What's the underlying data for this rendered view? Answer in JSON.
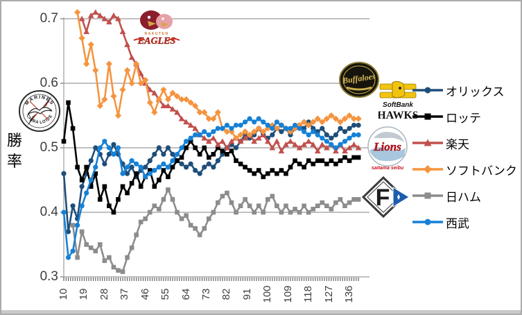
{
  "window": {
    "background": "#ffffff",
    "border_color": "#ababab"
  },
  "chart_data": {
    "type": "line",
    "title": "",
    "xlabel": "",
    "ylabel": "勝率",
    "ylim": [
      0.3,
      0.7
    ],
    "xlim": [
      10,
      143
    ],
    "grid": true,
    "legend_position": "right",
    "x_start": 10,
    "x_step": 2,
    "y_ticks": [
      {
        "value": 0.7,
        "label": "0.7"
      },
      {
        "value": 0.6,
        "label": "0.6"
      },
      {
        "value": 0.5,
        "label": "0.5"
      },
      {
        "value": 0.4,
        "label": "0.4"
      },
      {
        "value": 0.3,
        "label": "0.3"
      }
    ],
    "x_ticks": [
      {
        "value": 10,
        "label": "10"
      },
      {
        "value": 19,
        "label": "19"
      },
      {
        "value": 28,
        "label": "28"
      },
      {
        "value": 37,
        "label": "37"
      },
      {
        "value": 46,
        "label": "46"
      },
      {
        "value": 55,
        "label": "55"
      },
      {
        "value": 64,
        "label": "64"
      },
      {
        "value": 73,
        "label": "73"
      },
      {
        "value": 82,
        "label": "82"
      },
      {
        "value": 91,
        "label": "91"
      },
      {
        "value": 100,
        "label": "100"
      },
      {
        "value": 109,
        "label": "109"
      },
      {
        "value": 118,
        "label": "118"
      },
      {
        "value": 127,
        "label": "127"
      },
      {
        "value": 136,
        "label": "136"
      }
    ],
    "series": [
      {
        "id": "orix",
        "name": "オリックス",
        "color": "#1F4E79",
        "marker": "circle",
        "values": [
          0.46,
          0.37,
          0.41,
          0.39,
          0.44,
          0.46,
          0.48,
          0.5,
          0.49,
          0.475,
          0.49,
          0.505,
          0.49,
          0.475,
          0.46,
          0.47,
          0.455,
          0.465,
          0.47,
          0.48,
          0.49,
          0.5,
          0.49,
          0.5,
          0.49,
          0.48,
          0.475,
          0.47,
          0.475,
          0.465,
          0.46,
          0.47,
          0.475,
          0.47,
          0.48,
          0.49,
          0.5,
          0.505,
          0.5,
          0.51,
          0.52,
          0.515,
          0.52,
          0.53,
          0.52,
          0.515,
          0.52,
          0.53,
          0.525,
          0.53,
          0.52,
          0.53,
          0.535,
          0.53,
          0.54,
          0.53,
          0.525,
          0.53,
          0.52,
          0.515,
          0.52,
          0.53,
          0.525,
          0.53,
          0.535,
          0.535
        ]
      },
      {
        "id": "lotte",
        "name": "ロッテ",
        "color": "#000000",
        "marker": "square",
        "values": [
          0.51,
          0.57,
          0.53,
          0.47,
          0.45,
          0.47,
          0.44,
          0.46,
          0.42,
          0.44,
          0.41,
          0.4,
          0.42,
          0.44,
          0.43,
          0.445,
          0.46,
          0.44,
          0.455,
          0.465,
          0.44,
          0.45,
          0.465,
          0.455,
          0.47,
          0.48,
          0.485,
          0.5,
          0.51,
          0.5,
          0.49,
          0.5,
          0.485,
          0.49,
          0.5,
          0.495,
          0.49,
          0.495,
          0.48,
          0.475,
          0.47,
          0.465,
          0.46,
          0.465,
          0.455,
          0.46,
          0.465,
          0.46,
          0.465,
          0.46,
          0.47,
          0.48,
          0.475,
          0.47,
          0.48,
          0.475,
          0.48,
          0.48,
          0.475,
          0.48,
          0.475,
          0.48,
          0.485,
          0.48,
          0.485,
          0.485
        ]
      },
      {
        "id": "rakuten",
        "name": "楽天",
        "color": "#C0504D",
        "marker": "triangle",
        "values": [
          null,
          null,
          null,
          null,
          0.7,
          0.68,
          0.705,
          0.71,
          0.705,
          0.7,
          0.695,
          0.705,
          0.7,
          0.68,
          0.66,
          0.64,
          0.63,
          0.615,
          0.6,
          0.59,
          0.585,
          0.575,
          0.565,
          0.565,
          0.56,
          0.555,
          0.545,
          0.54,
          0.535,
          0.53,
          0.52,
          0.515,
          0.51,
          0.515,
          0.505,
          0.51,
          0.5,
          0.51,
          0.515,
          0.51,
          0.515,
          0.52,
          0.51,
          0.515,
          0.52,
          0.51,
          0.5,
          0.51,
          0.495,
          0.505,
          0.51,
          0.505,
          0.5,
          0.505,
          0.51,
          0.505,
          0.495,
          0.505,
          0.5,
          0.505,
          0.495,
          0.505,
          0.495,
          0.5,
          0.505,
          0.5
        ]
      },
      {
        "id": "softbank",
        "name": "ソフトバンク",
        "color": "#F5943F",
        "marker": "diamond",
        "values": [
          null,
          null,
          null,
          0.71,
          0.67,
          0.63,
          0.66,
          0.62,
          0.565,
          0.575,
          0.63,
          0.58,
          0.55,
          0.59,
          0.62,
          0.6,
          0.63,
          0.6,
          0.605,
          0.57,
          0.555,
          0.575,
          0.59,
          0.575,
          0.585,
          0.58,
          0.575,
          0.575,
          0.57,
          0.565,
          0.555,
          0.555,
          0.545,
          0.545,
          0.555,
          0.53,
          0.525,
          0.525,
          0.515,
          0.52,
          0.525,
          0.52,
          0.525,
          0.53,
          0.525,
          0.53,
          0.535,
          0.53,
          0.535,
          0.53,
          0.525,
          0.53,
          0.535,
          0.54,
          0.535,
          0.54,
          0.545,
          0.54,
          0.545,
          0.55,
          0.545,
          0.54,
          0.545,
          0.55,
          0.545,
          0.545
        ]
      },
      {
        "id": "nipponham",
        "name": "日ハム",
        "color": "#8C8C8C",
        "marker": "square",
        "values": [
          null,
          null,
          0.38,
          0.33,
          0.37,
          0.35,
          0.345,
          0.34,
          0.35,
          0.325,
          0.33,
          0.315,
          0.31,
          0.308,
          0.33,
          0.345,
          0.365,
          0.385,
          0.39,
          0.4,
          0.41,
          0.405,
          0.42,
          0.435,
          0.42,
          0.4,
          0.39,
          0.395,
          0.38,
          0.375,
          0.365,
          0.375,
          0.39,
          0.4,
          0.415,
          0.425,
          0.43,
          0.415,
          0.4,
          0.41,
          0.42,
          0.41,
          0.4,
          0.41,
          0.4,
          0.42,
          0.425,
          0.41,
          0.4,
          0.41,
          0.4,
          0.405,
          0.4,
          0.41,
          0.4,
          0.405,
          0.41,
          0.415,
          0.41,
          0.405,
          0.415,
          0.42,
          0.41,
          0.415,
          0.42,
          0.42
        ]
      },
      {
        "id": "seibu",
        "name": "西武",
        "color": "#1581D6",
        "marker": "circle",
        "values": [
          0.4,
          0.33,
          0.34,
          0.38,
          0.41,
          0.43,
          0.45,
          0.47,
          0.5,
          0.51,
          0.5,
          0.49,
          0.5,
          0.46,
          0.47,
          0.48,
          0.475,
          0.47,
          0.455,
          0.46,
          0.465,
          0.47,
          0.475,
          0.47,
          0.48,
          0.49,
          0.5,
          0.51,
          0.515,
          0.52,
          0.52,
          0.525,
          0.52,
          0.525,
          0.53,
          0.53,
          0.535,
          0.53,
          0.535,
          0.535,
          0.54,
          0.545,
          0.54,
          0.545,
          0.54,
          0.535,
          0.53,
          0.54,
          0.535,
          0.53,
          0.53,
          0.535,
          0.53,
          0.525,
          0.52,
          0.525,
          0.52,
          0.515,
          0.51,
          0.505,
          0.5,
          0.505,
          0.51,
          0.515,
          0.52,
          0.52
        ]
      }
    ]
  },
  "logos": {
    "eagles": {
      "sub": "RAKUTEN",
      "main": "EAGLES"
    },
    "marines": {
      "top": "MARINES",
      "bottom": "CHIBA LOTTE"
    },
    "buffaloes": {
      "main": "Buffaloes"
    },
    "hawks": {
      "top": "SoftBank",
      "main": "HAWKS"
    },
    "lions": {
      "main": "Lions",
      "sub": "saitama seibu"
    },
    "fighters": {
      "main": "F"
    }
  }
}
